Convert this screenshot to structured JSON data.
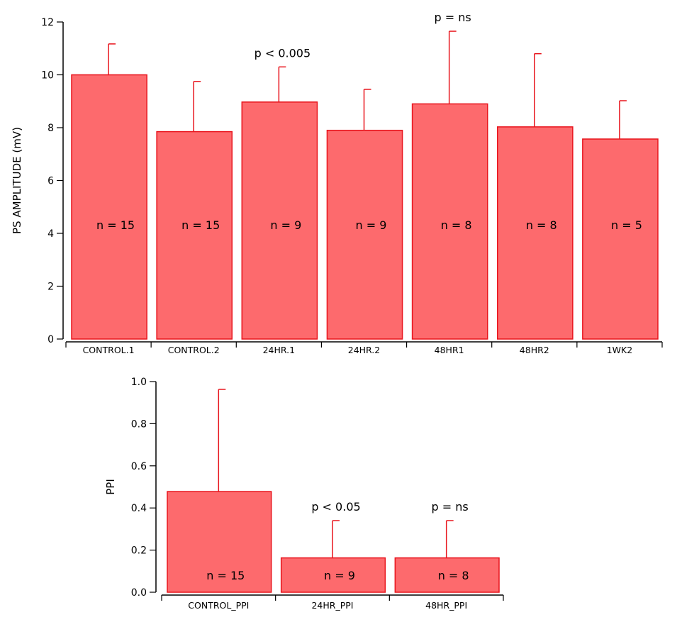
{
  "colors": {
    "bar_fill": "#fd6a6d",
    "bar_stroke": "#e8141c",
    "error_bar": "#e8141c",
    "axis": "#000000"
  },
  "chart_data": [
    {
      "type": "bar",
      "title": "",
      "xlabel": "",
      "ylabel": "PS AMPLITUDE (mV)",
      "ylim": [
        0,
        12
      ],
      "yticks": [
        "0",
        "2",
        "4",
        "6",
        "8",
        "10",
        "12"
      ],
      "categories": [
        "CONTROL.1",
        "CONTROL.2",
        "24HR.1",
        "24HR.2",
        "48HR1",
        "48HR2",
        "1WK2"
      ],
      "values": [
        10.0,
        7.85,
        8.97,
        7.9,
        8.9,
        8.03,
        7.57
      ],
      "error_upper": [
        1.17,
        1.9,
        1.33,
        1.55,
        2.75,
        2.77,
        1.45
      ],
      "bar_labels": [
        "n = 15",
        "n = 15",
        "n = 9",
        "n = 9",
        "n = 8",
        "n = 8",
        "n = 5"
      ],
      "annotations": [
        {
          "category": "24HR.1",
          "text": "p < 0.005"
        },
        {
          "category": "48HR1",
          "text": "p = ns"
        }
      ],
      "grid": false,
      "legend": "none"
    },
    {
      "type": "bar",
      "title": "",
      "xlabel": "",
      "ylabel": "PPI",
      "ylim": [
        0,
        1.0
      ],
      "yticks": [
        "0.0",
        "0.2",
        "0.4",
        "0.6",
        "0.8",
        "1.0"
      ],
      "categories": [
        "CONTROL_PPI",
        "24HR_PPI",
        "48HR_PPI"
      ],
      "values": [
        0.478,
        0.163,
        0.163
      ],
      "error_upper": [
        0.485,
        0.177,
        0.177
      ],
      "bar_labels": [
        "n = 15",
        "n = 9",
        "n = 8"
      ],
      "annotations": [
        {
          "category": "24HR_PPI",
          "text": "p < 0.05"
        },
        {
          "category": "48HR_PPI",
          "text": "p = ns"
        }
      ],
      "grid": false,
      "legend": "none"
    }
  ]
}
